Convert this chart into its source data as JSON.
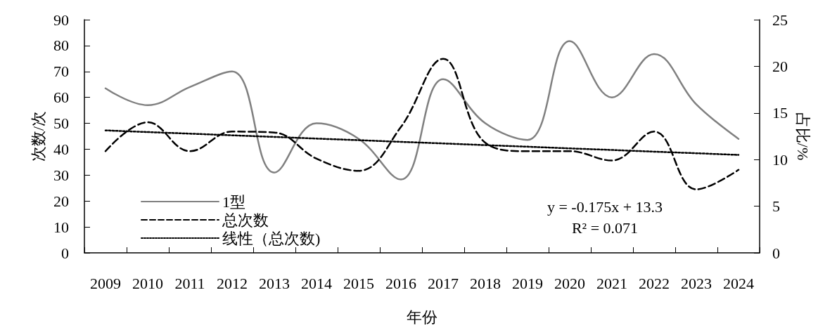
{
  "chart_data": {
    "type": "line",
    "xlabel": "年份",
    "ylabel": "次数/次",
    "y2label": "占比/%",
    "categories": [
      "2009",
      "2010",
      "2011",
      "2012",
      "2013",
      "2014",
      "2015",
      "2016",
      "2017",
      "2018",
      "2019",
      "2020",
      "2021",
      "2022",
      "2023",
      "2024"
    ],
    "series": [
      {
        "name": "1型",
        "color": "#808080",
        "line_style": "solid",
        "values": [
          63.5,
          57,
          64,
          70,
          31,
          50,
          44,
          28.3,
          67,
          50,
          43.6,
          81.7,
          60,
          76.7,
          57.3,
          44
        ]
      },
      {
        "name": "总次数",
        "color": "#000000",
        "line_style": "dashed",
        "axis": "y2",
        "values": [
          10.9,
          14,
          10.9,
          13,
          12.9,
          10.1,
          8.8,
          13.5,
          20.8,
          11.8,
          10.9,
          10.9,
          9.9,
          13,
          6.8,
          8.9
        ]
      },
      {
        "name": "线性（总次数)",
        "color": "#000000",
        "line_style": "dotted",
        "axis": "y2",
        "values": [
          13.13,
          12.95,
          12.78,
          12.6,
          12.43,
          12.25,
          12.08,
          11.9,
          11.73,
          11.55,
          11.38,
          11.2,
          11.03,
          10.85,
          10.68,
          10.5
        ]
      }
    ],
    "ylim": [
      0,
      90
    ],
    "yticks": [
      0,
      10,
      20,
      30,
      40,
      50,
      60,
      70,
      80,
      90
    ],
    "y2lim": [
      0,
      25
    ],
    "y2ticks": [
      0,
      5,
      10,
      15,
      20,
      25
    ],
    "annotations": [
      "y = -0.175x + 13.3",
      "R² = 0.071"
    ],
    "legend": "bottom left",
    "grid": false,
    "marker": "none"
  }
}
